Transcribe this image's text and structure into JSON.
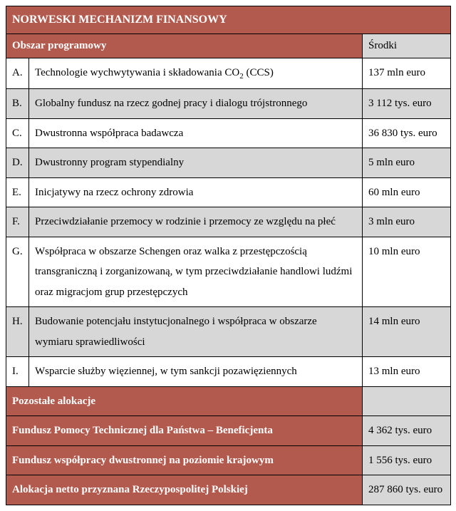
{
  "colors": {
    "header_bg": "#b35a4e",
    "header_fg": "#ffffff",
    "grey_bg": "#d7d7d7",
    "white_bg": "#ffffff",
    "border": "#000000"
  },
  "title": "NORWESKI MECHANIZM FINANSOWY",
  "header": {
    "left": "Obszar programowy",
    "right": "Środki"
  },
  "rows": [
    {
      "letter": "A.",
      "desc": "Technologie wychwytywania i składowania CO2 (CCS)",
      "amount": "137 mln euro",
      "zebra": "white",
      "co2": true
    },
    {
      "letter": "B.",
      "desc": "Globalny fundusz na rzecz godnej pracy i dialogu trójstronnego",
      "amount": "3 112 tys. euro",
      "zebra": "grey"
    },
    {
      "letter": "C.",
      "desc": "Dwustronna współpraca badawcza",
      "amount": "36 830 tys. euro",
      "zebra": "white"
    },
    {
      "letter": "D.",
      "desc": "Dwustronny program stypendialny",
      "amount": "5 mln euro",
      "zebra": "grey"
    },
    {
      "letter": "E.",
      "desc": "Inicjatywy na rzecz ochrony zdrowia",
      "amount": "60 mln euro",
      "zebra": "white"
    },
    {
      "letter": "F.",
      "desc": "Przeciwdziałanie przemocy w rodzinie i przemocy ze względu na płeć",
      "amount": "3 mln euro",
      "zebra": "grey"
    },
    {
      "letter": "G.",
      "desc": "Współpraca w obszarze Schengen oraz walka z przestępczością transgraniczną i zorganizowaną, w tym przeciwdziałanie handlowi ludźmi oraz migracjom grup przestępczych",
      "amount": "10 mln euro",
      "zebra": "white"
    },
    {
      "letter": "H.",
      "desc": "Budowanie potencjału instytucjonalnego i współpraca w obszarze wymiaru sprawiedliwości",
      "amount": "14 mln euro",
      "zebra": "grey"
    },
    {
      "letter": "I.",
      "desc": "Wsparcie służby więziennej, w tym sankcji pozawięziennych",
      "amount": "13 mln euro",
      "zebra": "white"
    }
  ],
  "section2_title": "Pozostałe alokacje",
  "footer_rows": [
    {
      "label": "Fundusz Pomocy Technicznej dla Państwa – Beneficjenta",
      "amount": "4 362 tys. euro"
    },
    {
      "label": "Fundusz współpracy dwustronnej na poziomie krajowym",
      "amount": "1 556 tys. euro"
    },
    {
      "label": "Alokacja netto przyznana Rzeczypospolitej Polskiej",
      "amount": "287 860 tys. euro"
    }
  ]
}
